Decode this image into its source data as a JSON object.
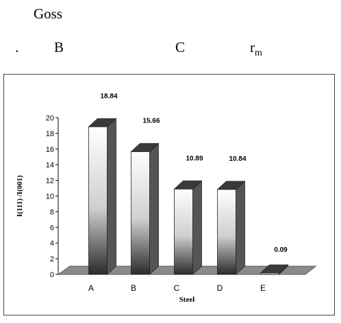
{
  "document": {
    "line1": "Goss",
    "line2_dot": ".",
    "line2_b": "B",
    "line2_c": "C",
    "line2_r": "r",
    "line2_sub": "m"
  },
  "colors": {
    "bar_top": "#ffffff",
    "bar_bottom": "#2a2a2a",
    "bar_side": "#555555",
    "floor": "#8a8a8a",
    "axis": "#000000"
  },
  "chart_data": {
    "type": "bar",
    "categories": [
      "A",
      "B",
      "C",
      "D",
      "E"
    ],
    "values": [
      18.84,
      15.66,
      10.89,
      10.84,
      0.09
    ],
    "data_labels": [
      "18.84",
      "15.66",
      "10.89",
      "10.84",
      "0.09"
    ],
    "yticks": [
      "0",
      "2",
      "4",
      "6",
      "8",
      "10",
      "12",
      "14",
      "16",
      "18",
      "20"
    ],
    "ylim": [
      0,
      20
    ],
    "xlabel": "Steel",
    "ylabel": "I(111) /I(001)",
    "grid": false,
    "style": "3d-column"
  }
}
